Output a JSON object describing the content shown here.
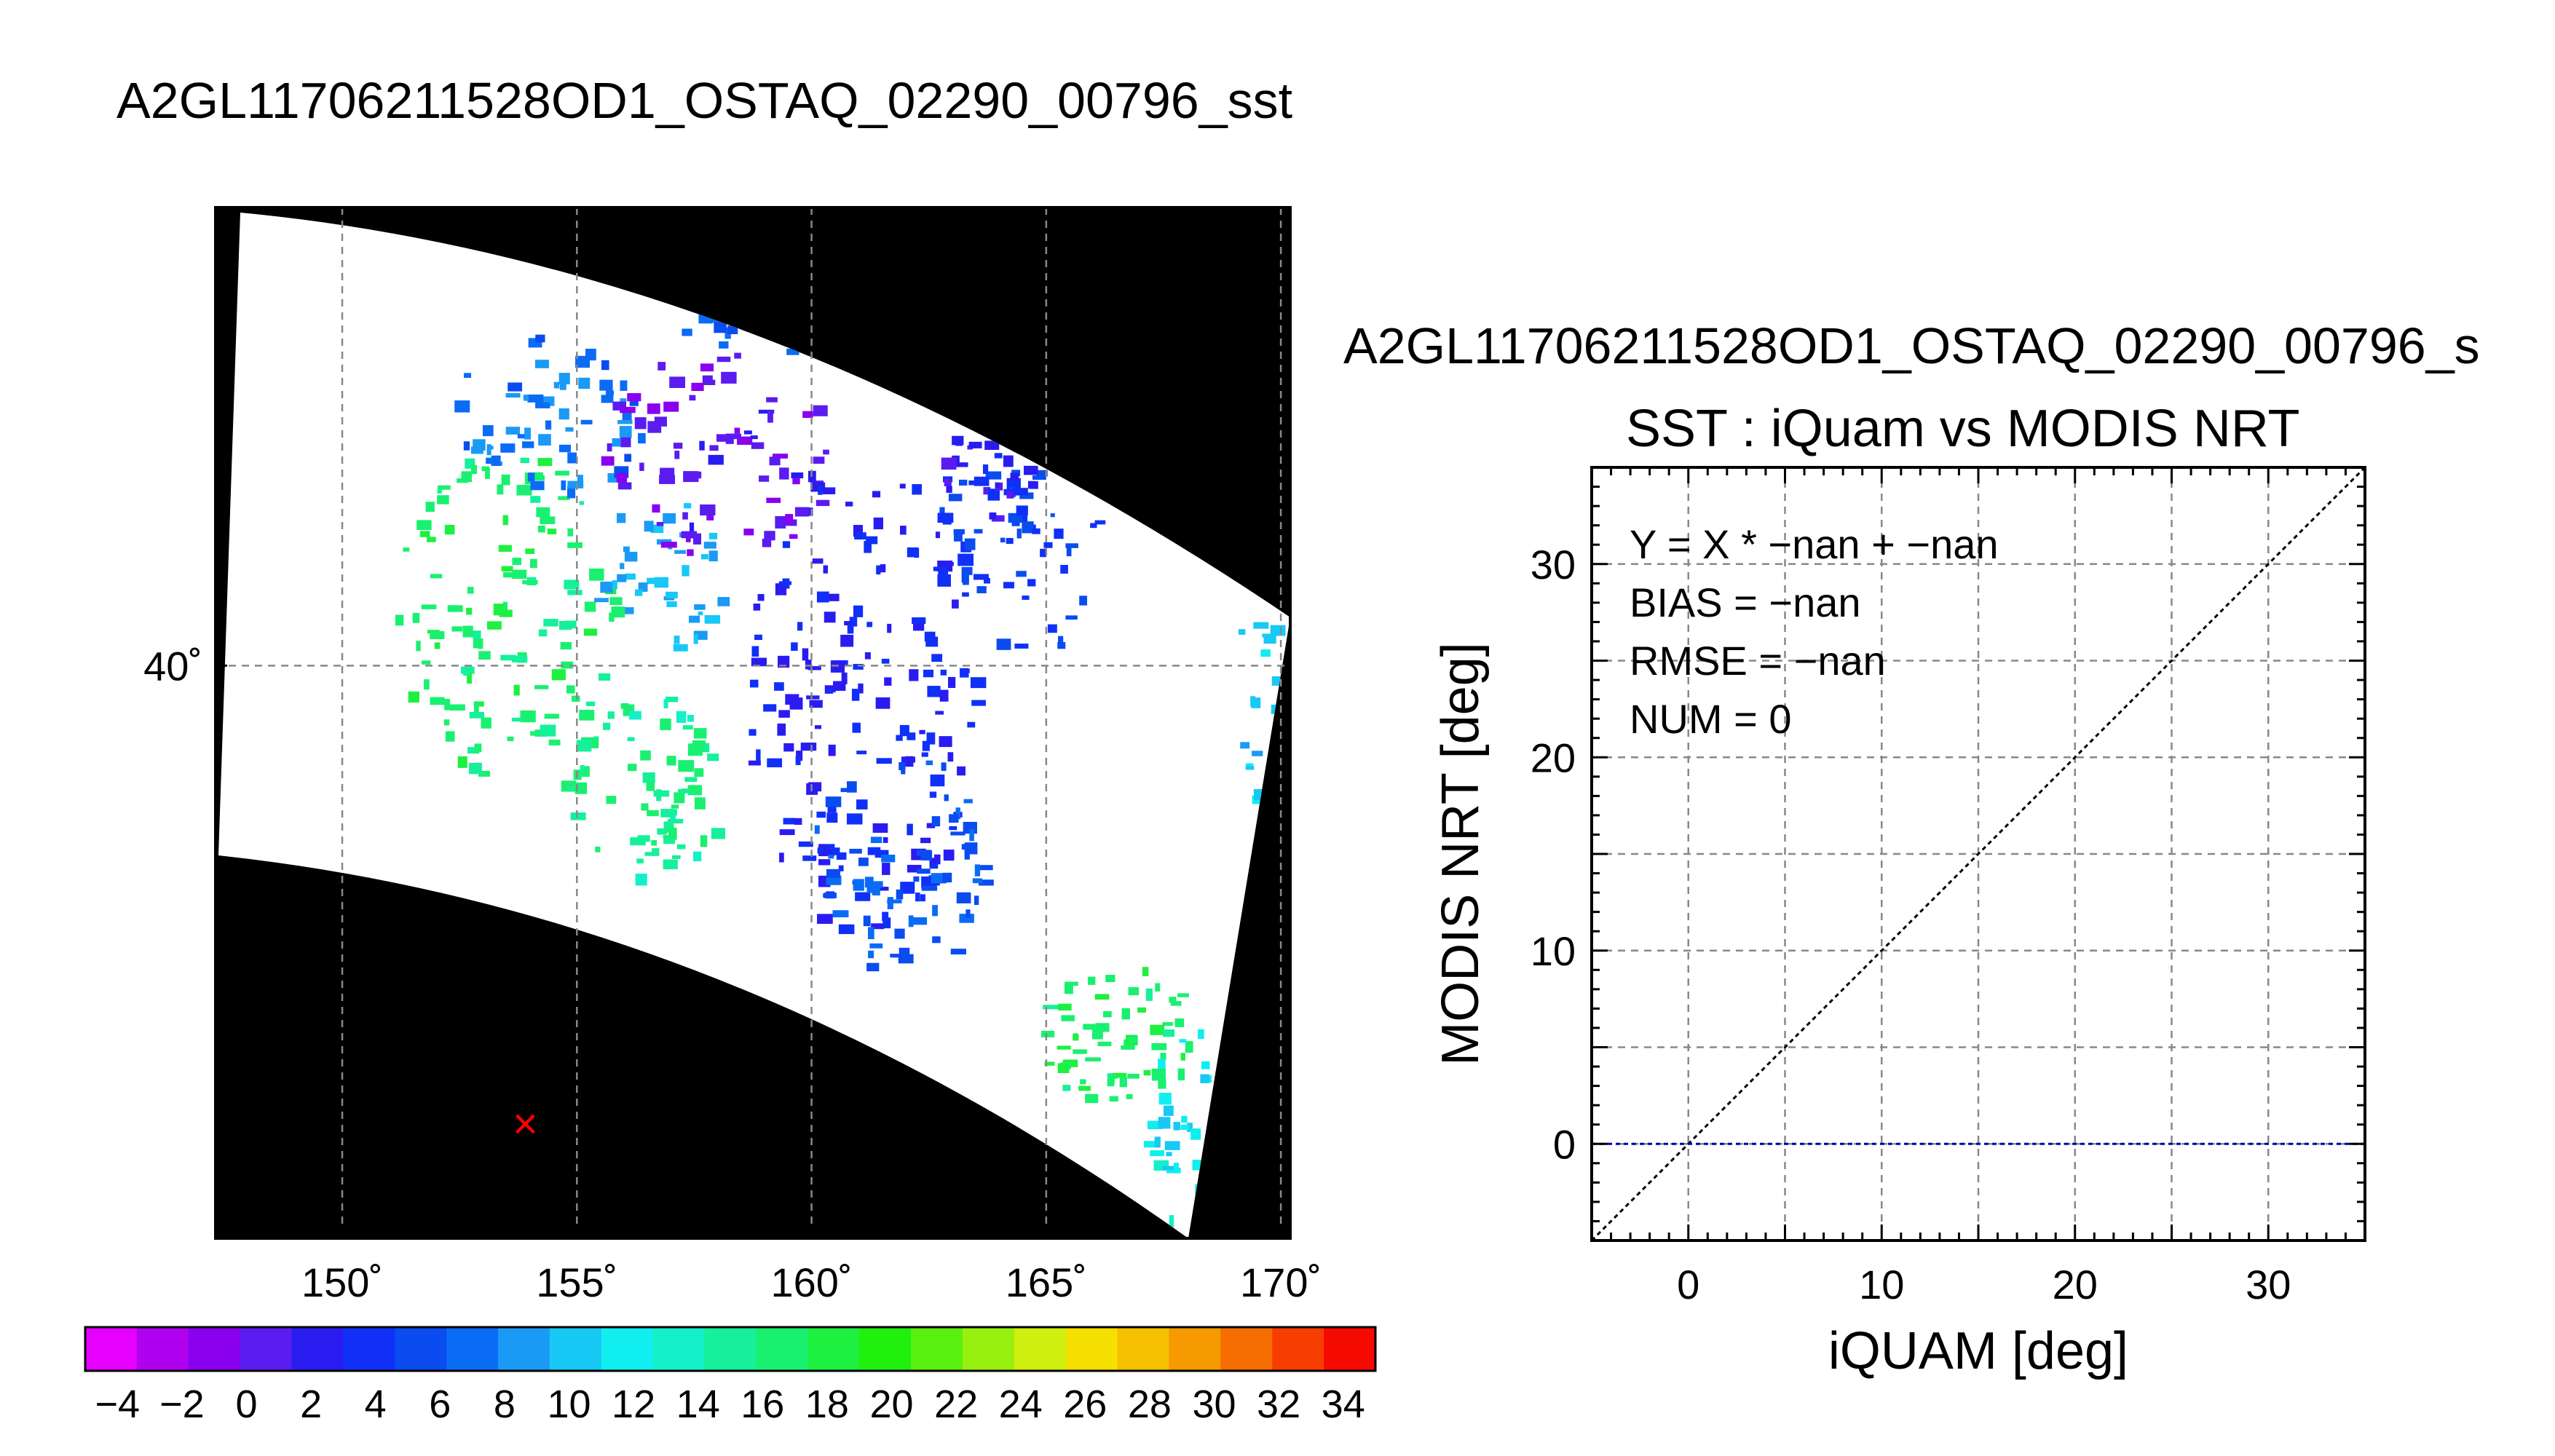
{
  "figure": {
    "main_title": "A2GL11706211528OD1_OSTAQ_02290_00796_sst",
    "right_title": "A2GL11706211528OD1_OSTAQ_02290_00796_s"
  },
  "chart_data": [
    {
      "type": "heatmap",
      "title": "A2GL11706211528OD1_OSTAQ_02290_00796_sst",
      "x_ticks": [
        "150˚",
        "155˚",
        "160˚",
        "165˚",
        "170˚"
      ],
      "x_values": [
        150,
        155,
        160,
        165,
        170
      ],
      "y_ticks": [
        "40˚"
      ],
      "y_values": [
        40
      ],
      "xlim": [
        147.3,
        170.2
      ],
      "ylim": [
        32.5,
        46
      ],
      "grid": true,
      "marker": {
        "symbol": "×",
        "lon": 153.9,
        "lat": 34.0,
        "color": "#ff0000"
      },
      "colorbar": {
        "labels": [
          "−4",
          "−2",
          "0",
          "2",
          "4",
          "6",
          "8",
          "10",
          "12",
          "14",
          "16",
          "18",
          "20",
          "22",
          "24",
          "26",
          "28",
          "30",
          "32",
          "34"
        ],
        "values": [
          -4,
          -2,
          0,
          2,
          4,
          6,
          8,
          10,
          12,
          14,
          16,
          18,
          20,
          22,
          24,
          26,
          28,
          30,
          32,
          34
        ],
        "range": [
          -5,
          35
        ],
        "colors": [
          "#e600ff",
          "#b000f0",
          "#8a00ee",
          "#5a1cf0",
          "#2a1cf0",
          "#1030f8",
          "#0a4cf0",
          "#0a6cf5",
          "#1a9af5",
          "#18c8f5",
          "#10eef0",
          "#14f0c8",
          "#16f09a",
          "#1af070",
          "#1ef040",
          "#20f00e",
          "#5af010",
          "#98f010",
          "#d0f010",
          "#f5e000",
          "#f5c000",
          "#f59a00",
          "#f56c00",
          "#f53e00",
          "#f50a00"
        ]
      }
    },
    {
      "type": "scatter",
      "title": "SST : iQuam vs MODIS NRT",
      "xlabel": "iQUAM [deg]",
      "ylabel": "MODIS NRT [deg]",
      "xlim": [
        -5,
        35
      ],
      "ylim": [
        -5,
        35
      ],
      "x_ticks": [
        "0",
        "10",
        "20",
        "30"
      ],
      "x_tick_values": [
        0,
        10,
        20,
        30
      ],
      "y_ticks": [
        "0",
        "10",
        "20",
        "30"
      ],
      "y_tick_values": [
        0,
        10,
        20,
        30
      ],
      "grid": true,
      "annotations": [
        "Y = X * −nan + −nan",
        "BIAS = −nan",
        "RMSE = −nan",
        "NUM = 0"
      ],
      "series": [
        {
          "kind": "one-to-one-line",
          "x": [
            -5,
            35
          ],
          "y": [
            -5,
            35
          ],
          "color": "#000000"
        },
        {
          "kind": "zero-line",
          "x": [
            -5,
            35
          ],
          "y": [
            0,
            0
          ],
          "color": "#0000aa"
        }
      ],
      "points": []
    }
  ]
}
